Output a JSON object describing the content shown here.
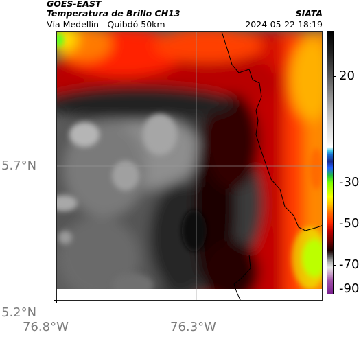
{
  "header": {
    "source": "GOES-EAST",
    "product": "Temperatura de Brillo CH13",
    "route": "Vía Medellín - Quibdó 50km",
    "agency": "SIATA",
    "timestamp": "2024-05-22 18:19"
  },
  "map": {
    "lat_labels": [
      "5.7°N",
      "5.2°N"
    ],
    "lon_labels": [
      "76.8°W",
      "76.3°W"
    ]
  },
  "colorbar": {
    "labels": [
      "20",
      "-30",
      "-50",
      "-70",
      "-90"
    ],
    "colors": [
      "#000000",
      "#ffffff",
      "#1a2a90",
      "#20c040",
      "#f7ff00",
      "#ff2a00",
      "#700000",
      "#b4b4b4",
      "#7a2090"
    ]
  }
}
